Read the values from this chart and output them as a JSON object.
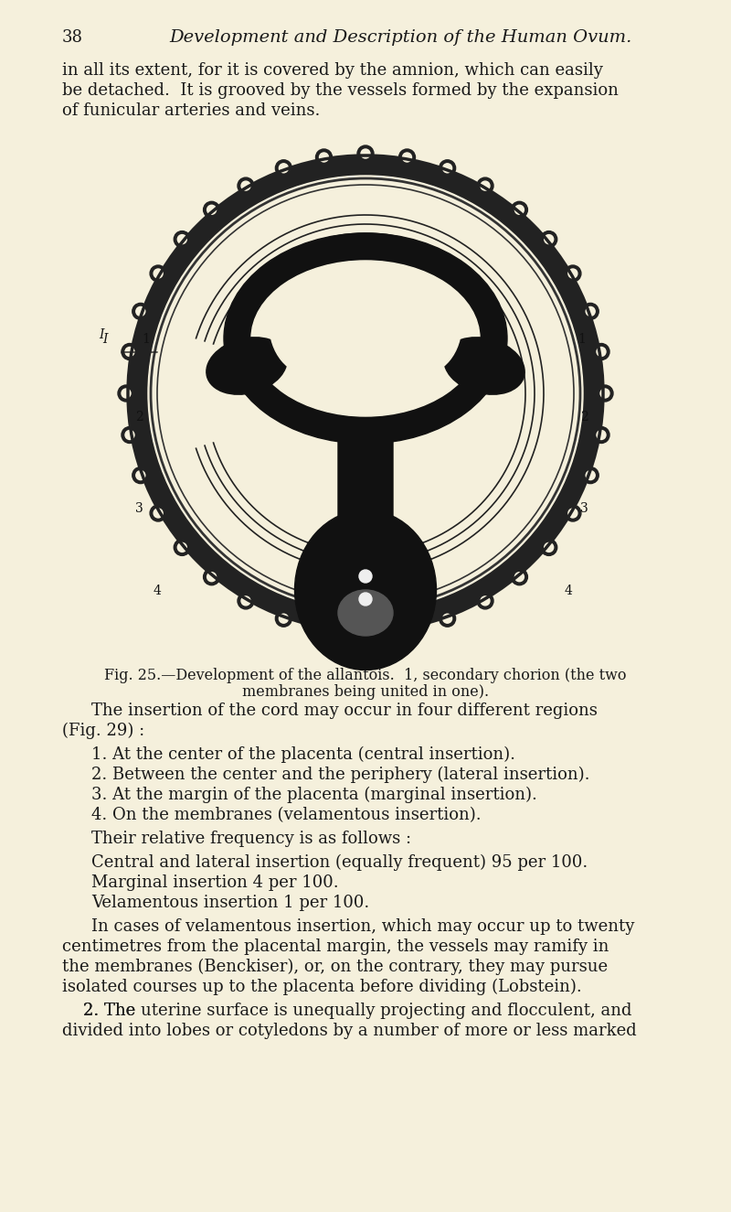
{
  "bg_color": "#f5f0dc",
  "page_number": "38",
  "header_title": "Development and Description of the Human Ovum.",
  "intro_text": [
    "in all its extent, for it is covered by the amnion, which can easily",
    "be detached.  It is grooved by the vessels formed by the expansion",
    "of funicular arteries and veins."
  ],
  "caption_line1": "Fig. 25.—Development of the allantois.  1, secondary chorion (the two",
  "caption_line2": "membranes being united in one).",
  "body_paragraphs": [
    {
      "indent": true,
      "text": "The insertion of the cord may occur in four different regions\n(Fig. 29) :"
    },
    {
      "indent": false,
      "list": [
        "1. At the center of the placenta (central insertion).",
        "2. Between the center and the periphery (lateral insertion).",
        "3. At the margin of the placenta (marginal insertion).",
        "4. On the membranes (velamentous insertion)."
      ]
    },
    {
      "indent": true,
      "text": "Their relative frequency is as follows :"
    },
    {
      "indent": true,
      "block": [
        "Central and lateral insertion (equally frequent) 95 per 100.",
        "Marginal insertion 4 per 100.",
        "Velamentous insertion 1 per 100."
      ]
    },
    {
      "indent": true,
      "text": "In cases of velamentous insertion, which may occur up to twenty\ncentimetres from the placental margin, the vessels may ramify in\nthe membranes (Benckiser), or, on the contrary, they may pursue\nisolated courses up to the placenta before dividing (Lobstein)."
    },
    {
      "indent": false,
      "text": "    2. The uterine surface is unequally projecting and flocculent, and\ndivided into lobes or cotyledons by a number of more or less marked"
    }
  ]
}
